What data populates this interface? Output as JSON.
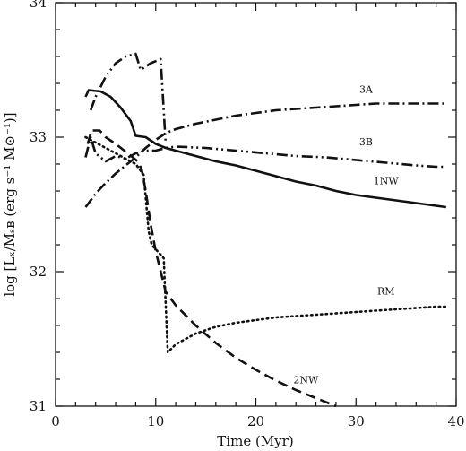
{
  "chart_data": {
    "type": "line",
    "title": "",
    "xlabel": "Time (Myr)",
    "ylabel": "log [Lₓ/Mₛʙ (erg s⁻¹ M⊙⁻¹)]",
    "xlim": [
      0,
      40
    ],
    "ylim": [
      31,
      34
    ],
    "x_ticks": [
      0,
      10,
      20,
      30,
      40
    ],
    "y_ticks": [
      31,
      32,
      33,
      34
    ],
    "grid": false,
    "legend": "none (series labeled inline)",
    "series": [
      {
        "name": "3A",
        "style": "dash-dot",
        "points": [
          [
            3,
            32.48
          ],
          [
            4,
            32.58
          ],
          [
            5,
            32.66
          ],
          [
            6,
            32.73
          ],
          [
            7,
            32.79
          ],
          [
            8,
            32.85
          ],
          [
            9,
            32.92
          ],
          [
            10,
            32.98
          ],
          [
            11,
            33.03
          ],
          [
            12,
            33.06
          ],
          [
            14,
            33.1
          ],
          [
            16,
            33.13
          ],
          [
            18,
            33.16
          ],
          [
            20,
            33.18
          ],
          [
            22,
            33.2
          ],
          [
            24,
            33.21
          ],
          [
            26,
            33.22
          ],
          [
            28,
            33.23
          ],
          [
            30,
            33.24
          ],
          [
            32,
            33.25
          ],
          [
            34,
            33.25
          ],
          [
            36,
            33.25
          ],
          [
            38,
            33.25
          ],
          [
            39,
            33.25
          ]
        ]
      },
      {
        "name": "3B",
        "style": "dash-dot-dot",
        "points": [
          [
            3,
            32.85
          ],
          [
            3.5,
            33.0
          ],
          [
            4,
            32.88
          ],
          [
            5,
            32.82
          ],
          [
            6,
            32.86
          ],
          [
            7,
            32.84
          ],
          [
            8,
            32.88
          ],
          [
            9,
            32.9
          ],
          [
            10,
            32.9
          ],
          [
            11,
            32.92
          ],
          [
            12,
            32.93
          ],
          [
            15,
            32.92
          ],
          [
            18,
            32.9
          ],
          [
            21,
            32.88
          ],
          [
            24,
            32.86
          ],
          [
            27,
            32.85
          ],
          [
            30,
            32.83
          ],
          [
            33,
            32.81
          ],
          [
            36,
            32.79
          ],
          [
            38,
            32.78
          ],
          [
            39,
            32.78
          ]
        ]
      },
      {
        "name": "1NW",
        "style": "solid",
        "points": [
          [
            3,
            33.3
          ],
          [
            3.3,
            33.35
          ],
          [
            4.5,
            33.34
          ],
          [
            5.5,
            33.3
          ],
          [
            6.5,
            33.22
          ],
          [
            7.5,
            33.12
          ],
          [
            8,
            33.01
          ],
          [
            9,
            33.0
          ],
          [
            10,
            32.95
          ],
          [
            11,
            32.92
          ],
          [
            12,
            32.9
          ],
          [
            14,
            32.86
          ],
          [
            16,
            32.82
          ],
          [
            18,
            32.79
          ],
          [
            20,
            32.75
          ],
          [
            22,
            32.71
          ],
          [
            24,
            32.67
          ],
          [
            26,
            32.64
          ],
          [
            28,
            32.6
          ],
          [
            30,
            32.57
          ],
          [
            32,
            32.55
          ],
          [
            34,
            32.53
          ],
          [
            36,
            32.51
          ],
          [
            38,
            32.49
          ],
          [
            39,
            32.48
          ]
        ]
      },
      {
        "name": "2NW",
        "style": "dashed",
        "points": [
          [
            3.2,
            32.95
          ],
          [
            3.6,
            33.05
          ],
          [
            4.4,
            33.05
          ],
          [
            5,
            33.0
          ],
          [
            6,
            32.95
          ],
          [
            7.2,
            32.88
          ],
          [
            8.2,
            32.82
          ],
          [
            8.6,
            32.76
          ],
          [
            9,
            32.6
          ],
          [
            9.5,
            32.35
          ],
          [
            10,
            32.15
          ],
          [
            11,
            31.85
          ],
          [
            12,
            31.75
          ],
          [
            14,
            31.6
          ],
          [
            16,
            31.47
          ],
          [
            18,
            31.36
          ],
          [
            20,
            31.27
          ],
          [
            22,
            31.19
          ],
          [
            24,
            31.12
          ],
          [
            26,
            31.06
          ],
          [
            28,
            31.0
          ]
        ]
      },
      {
        "name": "RM",
        "style": "dotted",
        "points": [
          [
            3,
            33.0
          ],
          [
            4,
            32.96
          ],
          [
            5,
            32.92
          ],
          [
            6,
            32.88
          ],
          [
            7,
            32.84
          ],
          [
            8,
            32.8
          ],
          [
            8.8,
            32.72
          ],
          [
            9.3,
            32.3
          ],
          [
            9.6,
            32.2
          ],
          [
            10.8,
            32.1
          ],
          [
            11.2,
            31.4
          ],
          [
            12,
            31.46
          ],
          [
            14,
            31.54
          ],
          [
            16,
            31.59
          ],
          [
            18,
            31.62
          ],
          [
            20,
            31.64
          ],
          [
            22,
            31.66
          ],
          [
            24,
            31.67
          ],
          [
            26,
            31.68
          ],
          [
            28,
            31.69
          ],
          [
            30,
            31.7
          ],
          [
            32,
            31.71
          ],
          [
            34,
            31.72
          ],
          [
            36,
            31.73
          ],
          [
            38,
            31.74
          ],
          [
            39,
            31.74
          ]
        ]
      },
      {
        "name": "",
        "style": "dash-dot-dot",
        "points": [
          [
            3.5,
            33.2
          ],
          [
            4,
            33.3
          ],
          [
            5,
            33.45
          ],
          [
            6,
            33.55
          ],
          [
            7,
            33.6
          ],
          [
            8,
            33.62
          ],
          [
            8.5,
            33.5
          ],
          [
            9.5,
            33.55
          ],
          [
            10.5,
            33.58
          ],
          [
            11,
            32.95
          ]
        ]
      }
    ],
    "annotations": [
      {
        "text": "3A",
        "x": 31,
        "y": 33.33
      },
      {
        "text": "3B",
        "x": 31,
        "y": 32.94
      },
      {
        "text": "1NW",
        "x": 33,
        "y": 32.65
      },
      {
        "text": "RM",
        "x": 33,
        "y": 31.83
      },
      {
        "text": "2NW",
        "x": 25,
        "y": 31.17
      }
    ]
  }
}
